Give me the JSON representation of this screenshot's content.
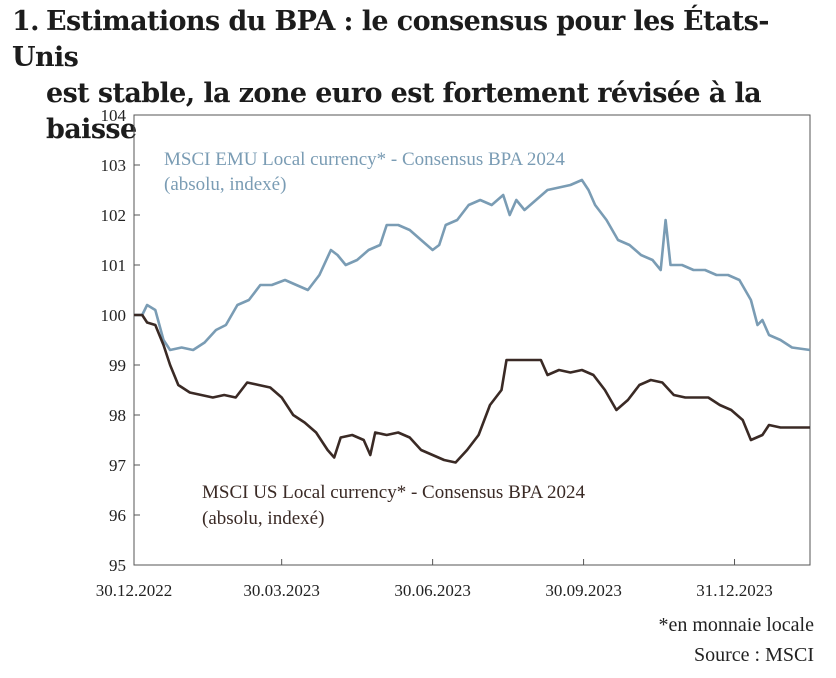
{
  "title": {
    "number": "1.",
    "line1": "Estimations du BPA : le consensus pour les États-Unis",
    "line2": "est stable, la zone euro est fortement révisée à la baisse"
  },
  "footnote": "*en monnaie locale",
  "source": "Source : MSCI",
  "colors": {
    "emu": "#7a9cb4",
    "us": "#3a2a25",
    "axis": "#555555"
  },
  "chart_data": {
    "type": "line",
    "ylim": [
      95,
      104
    ],
    "yticks": [
      "104",
      "103",
      "102",
      "101",
      "100",
      "99",
      "98",
      "97",
      "96",
      "95"
    ],
    "xticks": [
      "30.12.2022",
      "30.03.2023",
      "30.06.2023",
      "30.09.2023",
      "31.12.2023"
    ],
    "xlim_dates": [
      "2022-12-30",
      "2024-02-15"
    ],
    "xtick_dates": [
      "2022-12-30",
      "2023-03-30",
      "2023-06-30",
      "2023-09-30",
      "2023-12-31"
    ],
    "grid": false,
    "series": [
      {
        "name": "MSCI EMU Local currency* - Consensus BPA 2024",
        "label_line2": "(absolu, indexé)",
        "color": "#7a9cb4",
        "points": [
          [
            "2022-12-30",
            100.0
          ],
          [
            "2023-01-04",
            100.0
          ],
          [
            "2023-01-07",
            100.2
          ],
          [
            "2023-01-12",
            100.1
          ],
          [
            "2023-01-17",
            99.5
          ],
          [
            "2023-01-21",
            99.3
          ],
          [
            "2023-01-28",
            99.35
          ],
          [
            "2023-02-04",
            99.3
          ],
          [
            "2023-02-11",
            99.45
          ],
          [
            "2023-02-18",
            99.7
          ],
          [
            "2023-02-24",
            99.8
          ],
          [
            "2023-03-03",
            100.2
          ],
          [
            "2023-03-10",
            100.3
          ],
          [
            "2023-03-17",
            100.6
          ],
          [
            "2023-03-24",
            100.6
          ],
          [
            "2023-04-01",
            100.7
          ],
          [
            "2023-04-08",
            100.6
          ],
          [
            "2023-04-15",
            100.5
          ],
          [
            "2023-04-22",
            100.8
          ],
          [
            "2023-04-29",
            101.3
          ],
          [
            "2023-05-03",
            101.2
          ],
          [
            "2023-05-08",
            101.0
          ],
          [
            "2023-05-15",
            101.1
          ],
          [
            "2023-05-22",
            101.3
          ],
          [
            "2023-05-29",
            101.4
          ],
          [
            "2023-06-02",
            101.8
          ],
          [
            "2023-06-09",
            101.8
          ],
          [
            "2023-06-16",
            101.7
          ],
          [
            "2023-06-23",
            101.5
          ],
          [
            "2023-06-30",
            101.3
          ],
          [
            "2023-07-04",
            101.4
          ],
          [
            "2023-07-08",
            101.8
          ],
          [
            "2023-07-15",
            101.9
          ],
          [
            "2023-07-22",
            102.2
          ],
          [
            "2023-07-29",
            102.3
          ],
          [
            "2023-08-05",
            102.2
          ],
          [
            "2023-08-12",
            102.4
          ],
          [
            "2023-08-16",
            102.0
          ],
          [
            "2023-08-20",
            102.3
          ],
          [
            "2023-08-25",
            102.1
          ],
          [
            "2023-09-01",
            102.3
          ],
          [
            "2023-09-08",
            102.5
          ],
          [
            "2023-09-15",
            102.55
          ],
          [
            "2023-09-22",
            102.6
          ],
          [
            "2023-09-29",
            102.7
          ],
          [
            "2023-10-03",
            102.5
          ],
          [
            "2023-10-07",
            102.2
          ],
          [
            "2023-10-14",
            101.9
          ],
          [
            "2023-10-21",
            101.5
          ],
          [
            "2023-10-28",
            101.4
          ],
          [
            "2023-11-04",
            101.2
          ],
          [
            "2023-11-11",
            101.1
          ],
          [
            "2023-11-16",
            100.9
          ],
          [
            "2023-11-19",
            101.9
          ],
          [
            "2023-11-22",
            101.0
          ],
          [
            "2023-11-29",
            101.0
          ],
          [
            "2023-12-06",
            100.9
          ],
          [
            "2023-12-13",
            100.9
          ],
          [
            "2023-12-20",
            100.8
          ],
          [
            "2023-12-27",
            100.8
          ],
          [
            "2024-01-03",
            100.7
          ],
          [
            "2024-01-10",
            100.3
          ],
          [
            "2024-01-14",
            99.8
          ],
          [
            "2024-01-17",
            99.9
          ],
          [
            "2024-01-21",
            99.6
          ],
          [
            "2024-01-28",
            99.5
          ],
          [
            "2024-02-04",
            99.35
          ],
          [
            "2024-02-15",
            99.3
          ]
        ]
      },
      {
        "name": "MSCI US Local currency* - Consensus BPA 2024",
        "label_line2": "(absolu, indexé)",
        "color": "#3a2a25",
        "points": [
          [
            "2022-12-30",
            100.0
          ],
          [
            "2023-01-04",
            100.0
          ],
          [
            "2023-01-07",
            99.85
          ],
          [
            "2023-01-12",
            99.8
          ],
          [
            "2023-01-17",
            99.4
          ],
          [
            "2023-01-21",
            99.0
          ],
          [
            "2023-01-26",
            98.6
          ],
          [
            "2023-02-02",
            98.45
          ],
          [
            "2023-02-09",
            98.4
          ],
          [
            "2023-02-16",
            98.35
          ],
          [
            "2023-02-23",
            98.4
          ],
          [
            "2023-03-02",
            98.35
          ],
          [
            "2023-03-09",
            98.65
          ],
          [
            "2023-03-16",
            98.6
          ],
          [
            "2023-03-23",
            98.55
          ],
          [
            "2023-03-30",
            98.35
          ],
          [
            "2023-04-06",
            98.0
          ],
          [
            "2023-04-13",
            97.85
          ],
          [
            "2023-04-20",
            97.65
          ],
          [
            "2023-04-27",
            97.3
          ],
          [
            "2023-05-01",
            97.15
          ],
          [
            "2023-05-05",
            97.55
          ],
          [
            "2023-05-12",
            97.6
          ],
          [
            "2023-05-19",
            97.5
          ],
          [
            "2023-05-23",
            97.2
          ],
          [
            "2023-05-26",
            97.65
          ],
          [
            "2023-06-02",
            97.6
          ],
          [
            "2023-06-09",
            97.65
          ],
          [
            "2023-06-16",
            97.55
          ],
          [
            "2023-06-23",
            97.3
          ],
          [
            "2023-06-30",
            97.2
          ],
          [
            "2023-07-07",
            97.1
          ],
          [
            "2023-07-14",
            97.05
          ],
          [
            "2023-07-21",
            97.3
          ],
          [
            "2023-07-28",
            97.6
          ],
          [
            "2023-08-04",
            98.2
          ],
          [
            "2023-08-11",
            98.5
          ],
          [
            "2023-08-14",
            99.1
          ],
          [
            "2023-08-21",
            99.1
          ],
          [
            "2023-08-28",
            99.1
          ],
          [
            "2023-09-04",
            99.1
          ],
          [
            "2023-09-08",
            98.8
          ],
          [
            "2023-09-15",
            98.9
          ],
          [
            "2023-09-22",
            98.85
          ],
          [
            "2023-09-29",
            98.9
          ],
          [
            "2023-10-06",
            98.8
          ],
          [
            "2023-10-13",
            98.5
          ],
          [
            "2023-10-20",
            98.1
          ],
          [
            "2023-10-27",
            98.3
          ],
          [
            "2023-11-03",
            98.6
          ],
          [
            "2023-11-10",
            98.7
          ],
          [
            "2023-11-17",
            98.65
          ],
          [
            "2023-11-24",
            98.4
          ],
          [
            "2023-12-01",
            98.35
          ],
          [
            "2023-12-08",
            98.35
          ],
          [
            "2023-12-15",
            98.35
          ],
          [
            "2023-12-22",
            98.2
          ],
          [
            "2023-12-29",
            98.1
          ],
          [
            "2024-01-05",
            97.9
          ],
          [
            "2024-01-10",
            97.5
          ],
          [
            "2024-01-17",
            97.6
          ],
          [
            "2024-01-21",
            97.8
          ],
          [
            "2024-01-28",
            97.75
          ],
          [
            "2024-02-04",
            97.75
          ],
          [
            "2024-02-15",
            97.75
          ]
        ]
      }
    ]
  }
}
